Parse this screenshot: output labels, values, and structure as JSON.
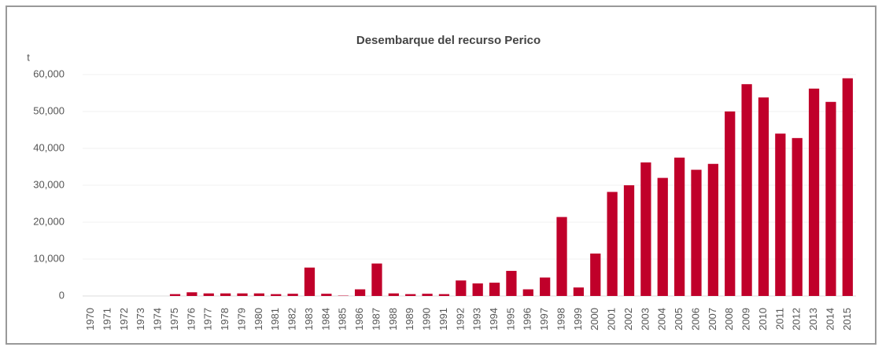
{
  "chart_data": {
    "type": "bar",
    "title": "Desembarque del recurso Perico",
    "y_label": "t",
    "categories": [
      "1970",
      "1971",
      "1972",
      "1973",
      "1974",
      "1975",
      "1976",
      "1977",
      "1978",
      "1979",
      "1980",
      "1981",
      "1982",
      "1983",
      "1984",
      "1985",
      "1986",
      "1987",
      "1988",
      "1989",
      "1990",
      "1991",
      "1992",
      "1993",
      "1994",
      "1995",
      "1996",
      "1997",
      "1998",
      "1999",
      "2000",
      "2001",
      "2002",
      "2003",
      "2004",
      "2005",
      "2006",
      "2007",
      "2008",
      "2009",
      "2010",
      "2011",
      "2012",
      "2013",
      "2014",
      "2015"
    ],
    "values": [
      0,
      0,
      0,
      0,
      0,
      500,
      1000,
      700,
      700,
      700,
      700,
      500,
      600,
      7700,
      600,
      100,
      1800,
      8800,
      700,
      500,
      600,
      500,
      4200,
      3400,
      3600,
      6800,
      1800,
      5000,
      21400,
      2300,
      11500,
      28200,
      30000,
      36200,
      32000,
      37500,
      34200,
      35800,
      50000,
      57400,
      53800,
      44000,
      42800,
      56200,
      52600,
      59000
    ],
    "color": "#c0002a",
    "ylim": [
      0,
      60000
    ],
    "yticks": [
      0,
      {
        "value": 10000,
        "label": "10,000"
      },
      {
        "value": 20000,
        "label": "20,000"
      },
      {
        "value": 30000,
        "label": "30,000"
      },
      {
        "value": 40000,
        "label": "40,000"
      },
      {
        "value": 50000,
        "label": "50,000"
      },
      {
        "value": 60000,
        "label": "60,000"
      }
    ],
    "grid": true
  }
}
